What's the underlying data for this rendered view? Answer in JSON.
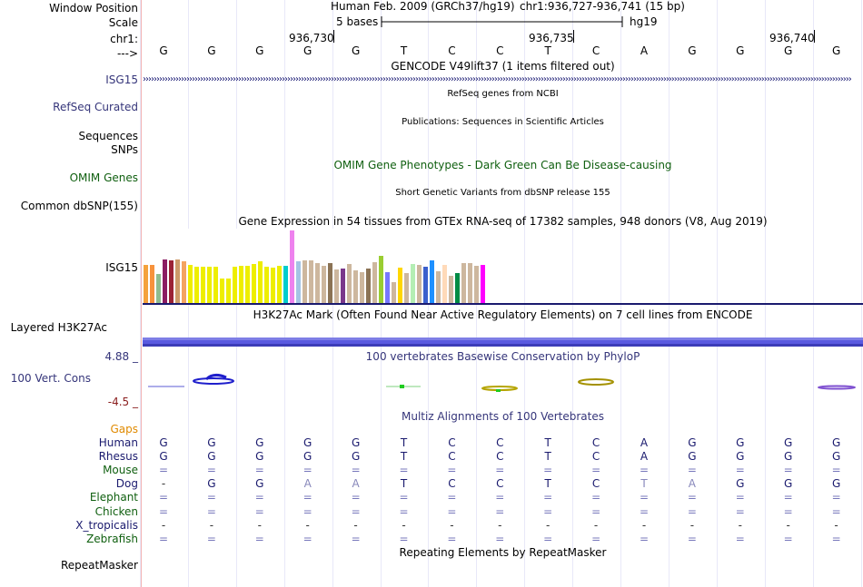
{
  "labels": {
    "window_position": "Window Position",
    "scale": "Scale",
    "chrom": "chr1:",
    "arrow": "--->",
    "isg15": "ISG15",
    "refseq": "RefSeq Curated",
    "sequences": "Sequences",
    "snps": "SNPs",
    "omim": "OMIM Genes",
    "dbsnp": "Common dbSNP(155)",
    "isg15_gtex": "ISG15",
    "h3k27ac": "Layered H3K27Ac",
    "cons_max": "4.88 _",
    "cons": "100 Vert. Cons",
    "cons_min": "-4.5 _",
    "gaps": "Gaps",
    "repeatmasker": "RepeatMasker"
  },
  "header": {
    "assembly": "Human Feb. 2009 (GRCh37/hg19)",
    "position": "chr1:936,727-936,741 (15 bp)",
    "scale_text": "5 bases",
    "scale_db": "hg19",
    "ticks": [
      "936,730",
      "936,735",
      "936,740"
    ]
  },
  "sequence": [
    "G",
    "G",
    "G",
    "G",
    "G",
    "T",
    "C",
    "C",
    "T",
    "C",
    "A",
    "G",
    "G",
    "G",
    "G"
  ],
  "tracks": {
    "gencode": "GENCODE V49lift37 (1 items filtered out)",
    "refseq": "RefSeq genes from NCBI",
    "publications": "Publications: Sequences in Scientific Articles",
    "omim": "OMIM Gene Phenotypes - Dark Green Can Be Disease-causing",
    "dbsnp": "Short Genetic Variants from dbSNP release 155",
    "gtex": "Gene Expression in 54 tissues from GTEx RNA-seq of 17382 samples, 948 donors (V8, Aug 2019)",
    "h3k27ac": "H3K27Ac Mark (Often Found Near Active Regulatory Elements) on 7 cell lines from ENCODE",
    "phylop": "100 vertebrates Basewise Conservation by PhyloP",
    "multiz": "Multiz Alignments of 100 Vertebrates",
    "rmsk": "Repeating Elements by RepeatMasker"
  },
  "alignment": [
    {
      "species": "Human",
      "bases": [
        "G",
        "G",
        "G",
        "G",
        "G",
        "T",
        "C",
        "C",
        "T",
        "C",
        "A",
        "G",
        "G",
        "G",
        "G"
      ]
    },
    {
      "species": "Rhesus",
      "bases": [
        "G",
        "G",
        "G",
        "G",
        "G",
        "T",
        "C",
        "C",
        "T",
        "C",
        "A",
        "G",
        "G",
        "G",
        "G"
      ]
    },
    {
      "species": "Mouse",
      "bases": [
        "=",
        "=",
        "=",
        "=",
        "=",
        "=",
        "=",
        "=",
        "=",
        "=",
        "=",
        "=",
        "=",
        "=",
        "="
      ]
    },
    {
      "species": "Dog",
      "bases": [
        "-",
        "G",
        "G",
        "A",
        "A",
        "T",
        "C",
        "C",
        "T",
        "C",
        "T",
        "A",
        "G",
        "G",
        "G"
      ]
    },
    {
      "species": "Elephant",
      "bases": [
        "=",
        "=",
        "=",
        "=",
        "=",
        "=",
        "=",
        "=",
        "=",
        "=",
        "=",
        "=",
        "=",
        "=",
        "="
      ]
    },
    {
      "species": "Chicken",
      "bases": [
        "=",
        "=",
        "=",
        "=",
        "=",
        "=",
        "=",
        "=",
        "=",
        "=",
        "=",
        "=",
        "=",
        "=",
        "="
      ]
    },
    {
      "species": "X_tropicalis",
      "bases": [
        "-",
        "-",
        "-",
        "-",
        "-",
        "-",
        "-",
        "-",
        "-",
        "-",
        "-",
        "-",
        "-",
        "-",
        "-"
      ]
    },
    {
      "species": "Zebrafish",
      "bases": [
        "=",
        "=",
        "=",
        "=",
        "=",
        "=",
        "=",
        "=",
        "=",
        "=",
        "=",
        "=",
        "=",
        "=",
        "="
      ]
    }
  ],
  "gtex_values": [
    42,
    42,
    32,
    48,
    47,
    48,
    46,
    42,
    40,
    40,
    40,
    40,
    27,
    27,
    40,
    41,
    41,
    43,
    46,
    40,
    39,
    41,
    41,
    80,
    46,
    47,
    47,
    44,
    41,
    44,
    37,
    38,
    43,
    36,
    34,
    38,
    45,
    52,
    34,
    23,
    39,
    33,
    43,
    42,
    40,
    47,
    35,
    42,
    30,
    33,
    44,
    44,
    41,
    42
  ],
  "colors": {
    "gtex": [
      "#f4a23c",
      "#f7923c",
      "#8fbc8f",
      "#8b1c62",
      "#9b2335",
      "#cd9b69",
      "#f4a460",
      "#eeee00",
      "#eeee00",
      "#eeee00",
      "#eeee00",
      "#eeee00",
      "#eeee00",
      "#eeee00",
      "#eeee00",
      "#eeee00",
      "#eeee00",
      "#eeee00",
      "#eeee00",
      "#eeee00",
      "#eeee00",
      "#eeee00",
      "#00cdcd",
      "#ee82ee",
      "#a4c4e4",
      "#cdb79e",
      "#cdb79e",
      "#cdb79e",
      "#cdb79e",
      "#8b7355",
      "#cdb79e",
      "#7a378b",
      "#cdb79e",
      "#cdb79e",
      "#cdb79e",
      "#8b7355",
      "#cdb79e",
      "#9acd32",
      "#7777ff",
      "#cdb79e",
      "#ffd700",
      "#cdb79e",
      "#b4eeb4",
      "#cdb79e",
      "#3a5fcd",
      "#1e90ff",
      "#cdb79e",
      "#ffdab9",
      "#cdb79e",
      "#008b45",
      "#cdb79e",
      "#cdb79e",
      "#cdb79e",
      "#ff00ff"
    ]
  }
}
